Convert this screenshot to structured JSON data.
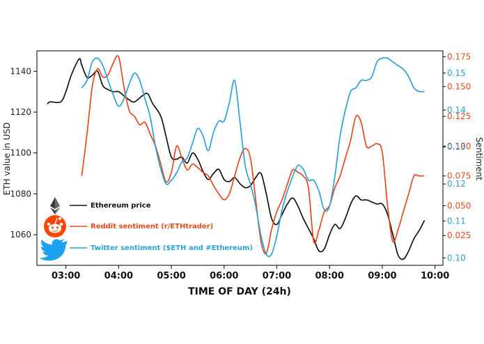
{
  "chart_data": {
    "type": "line",
    "title": "",
    "xlabel": "TIME OF DAY (24h)",
    "ylabel_left": "ETH value in USD",
    "ylabel_right": "Sentiment",
    "x_ticks": [
      "03:00",
      "04:00",
      "05:00",
      "06:00",
      "07:00",
      "08:00",
      "09:00",
      "10:00"
    ],
    "x_tick_hours": [
      3,
      4,
      5,
      6,
      7,
      8,
      9,
      10
    ],
    "xlim": [
      2.45,
      10.15
    ],
    "y_left": {
      "lim": [
        1045,
        1150
      ],
      "ticks": [
        1060,
        1080,
        1100,
        1120,
        1140
      ]
    },
    "y_right_reddit": {
      "lim": [
        0.0,
        0.18
      ],
      "ticks": [
        "0.025",
        "0.050",
        "0.075",
        "0.100",
        "0.125",
        "0.150",
        "0.175"
      ],
      "tick_values": [
        0.025,
        0.05,
        0.075,
        0.1,
        0.125,
        0.15,
        0.175
      ],
      "color": "#E8481C"
    },
    "y_right_twitter": {
      "lim": [
        0.098,
        0.156
      ],
      "ticks": [
        "0.10",
        "0.11",
        "0.12",
        "0.13",
        "0.14",
        "0.15"
      ],
      "tick_values": [
        0.1,
        0.11,
        0.12,
        0.13,
        0.14,
        0.15
      ],
      "color": "#2AA1DA"
    },
    "series": [
      {
        "name": "Ethereum price",
        "color": "#111111",
        "axis": "left",
        "x": [
          2.65,
          2.7,
          2.9,
          3.0,
          3.1,
          3.25,
          3.3,
          3.4,
          3.5,
          3.6,
          3.7,
          3.8,
          3.9,
          4.0,
          4.1,
          4.2,
          4.3,
          4.45,
          4.55,
          4.65,
          4.8,
          4.9,
          5.0,
          5.1,
          5.2,
          5.3,
          5.4,
          5.5,
          5.6,
          5.7,
          5.8,
          5.9,
          6.0,
          6.1,
          6.2,
          6.3,
          6.4,
          6.5,
          6.6,
          6.7,
          6.8,
          6.9,
          7.0,
          7.1,
          7.2,
          7.3,
          7.4,
          7.5,
          7.6,
          7.7,
          7.8,
          7.9,
          8.0,
          8.1,
          8.2,
          8.3,
          8.4,
          8.5,
          8.6,
          8.7,
          8.8,
          8.9,
          9.0,
          9.1,
          9.2,
          9.3,
          9.4,
          9.5,
          9.6,
          9.7,
          9.8
        ],
        "values": [
          1124,
          1125,
          1125,
          1130,
          1138,
          1146,
          1143,
          1137,
          1138,
          1140,
          1133,
          1131,
          1130,
          1130,
          1128,
          1126,
          1125,
          1128,
          1129,
          1124,
          1118,
          1108,
          1098,
          1097,
          1098,
          1095,
          1100,
          1097,
          1091,
          1087,
          1090,
          1092,
          1087,
          1086,
          1088,
          1085,
          1083,
          1084,
          1088,
          1090,
          1080,
          1068,
          1065,
          1070,
          1075,
          1078,
          1074,
          1068,
          1063,
          1058,
          1052,
          1053,
          1060,
          1065,
          1063,
          1068,
          1075,
          1079,
          1077,
          1077,
          1076,
          1075,
          1075,
          1070,
          1060,
          1050,
          1048,
          1052,
          1058,
          1062,
          1067
        ]
      },
      {
        "name": "Reddit sentiment (r/ETHtrader)",
        "color": "#E8481C",
        "axis": "right_reddit",
        "x": [
          3.3,
          3.4,
          3.5,
          3.6,
          3.7,
          3.8,
          3.9,
          4.0,
          4.1,
          4.2,
          4.3,
          4.4,
          4.5,
          4.6,
          4.7,
          4.8,
          4.9,
          5.0,
          5.1,
          5.2,
          5.3,
          5.4,
          5.5,
          5.6,
          5.7,
          5.8,
          5.9,
          6.0,
          6.1,
          6.2,
          6.3,
          6.4,
          6.5,
          6.6,
          6.7,
          6.8,
          6.9,
          7.0,
          7.1,
          7.2,
          7.3,
          7.4,
          7.5,
          7.6,
          7.7,
          7.8,
          7.9,
          8.0,
          8.1,
          8.2,
          8.3,
          8.4,
          8.5,
          8.6,
          8.7,
          8.8,
          8.9,
          9.0,
          9.1,
          9.2,
          9.3,
          9.4,
          9.5,
          9.6,
          9.7,
          9.8
        ],
        "values": [
          0.075,
          0.11,
          0.15,
          0.165,
          0.158,
          0.16,
          0.17,
          0.175,
          0.15,
          0.13,
          0.125,
          0.118,
          0.12,
          0.11,
          0.1,
          0.085,
          0.07,
          0.078,
          0.1,
          0.09,
          0.08,
          0.085,
          0.082,
          0.078,
          0.075,
          0.067,
          0.06,
          0.055,
          0.06,
          0.075,
          0.09,
          0.098,
          0.09,
          0.055,
          0.02,
          0.01,
          0.03,
          0.045,
          0.055,
          0.068,
          0.08,
          0.078,
          0.075,
          0.065,
          0.02,
          0.03,
          0.045,
          0.05,
          0.065,
          0.075,
          0.09,
          0.105,
          0.125,
          0.12,
          0.1,
          0.1,
          0.102,
          0.095,
          0.05,
          0.02,
          0.03,
          0.045,
          0.06,
          0.075,
          0.075,
          0.075
        ]
      },
      {
        "name": "Twitter sentiment ($ETH and #Ethereum)",
        "color": "#2AA1DA",
        "axis": "right_twitter",
        "x": [
          3.3,
          3.4,
          3.5,
          3.6,
          3.7,
          3.8,
          3.9,
          4.0,
          4.1,
          4.2,
          4.3,
          4.4,
          4.5,
          4.6,
          4.7,
          4.8,
          4.9,
          5.0,
          5.1,
          5.2,
          5.3,
          5.4,
          5.5,
          5.6,
          5.7,
          5.8,
          5.9,
          6.0,
          6.1,
          6.2,
          6.3,
          6.4,
          6.5,
          6.6,
          6.7,
          6.8,
          6.9,
          7.0,
          7.1,
          7.2,
          7.3,
          7.4,
          7.5,
          7.6,
          7.7,
          7.8,
          7.9,
          8.0,
          8.1,
          8.2,
          8.3,
          8.4,
          8.5,
          8.6,
          8.7,
          8.8,
          8.9,
          9.0,
          9.1,
          9.2,
          9.3,
          9.4,
          9.5,
          9.6,
          9.7,
          9.8
        ],
        "values": [
          0.146,
          0.148,
          0.153,
          0.154,
          0.152,
          0.148,
          0.144,
          0.141,
          0.143,
          0.147,
          0.15,
          0.148,
          0.143,
          0.138,
          0.13,
          0.124,
          0.12,
          0.121,
          0.123,
          0.126,
          0.127,
          0.131,
          0.135,
          0.133,
          0.129,
          0.134,
          0.137,
          0.137,
          0.142,
          0.148,
          0.137,
          0.125,
          0.12,
          0.114,
          0.106,
          0.101,
          0.101,
          0.106,
          0.113,
          0.118,
          0.122,
          0.125,
          0.124,
          0.121,
          0.121,
          0.118,
          0.113,
          0.114,
          0.122,
          0.133,
          0.14,
          0.145,
          0.146,
          0.148,
          0.148,
          0.149,
          0.153,
          0.154,
          0.154,
          0.153,
          0.152,
          0.151,
          0.149,
          0.146,
          0.145,
          0.145
        ]
      }
    ],
    "legend": [
      {
        "label": "Ethereum price",
        "color": "#111111",
        "icon": "ethereum-icon"
      },
      {
        "label": "Reddit sentiment (r/ETHtrader)",
        "color": "#E8481C",
        "icon": "reddit-icon"
      },
      {
        "label": "Twitter sentiment ($ETH and #Ethereum)",
        "color": "#2AA1DA",
        "icon": "twitter-icon"
      }
    ],
    "legend_position": "lower-left"
  }
}
